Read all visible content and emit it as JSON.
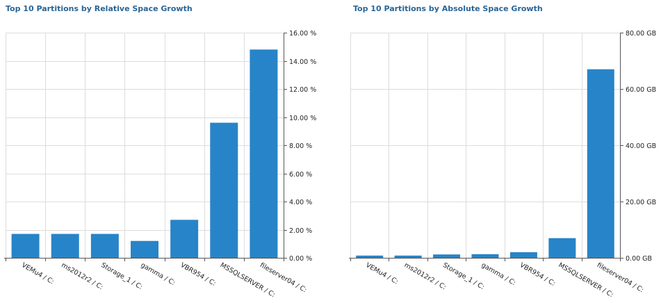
{
  "chart_data": [
    {
      "type": "bar",
      "title": "Top 10 Partitions by Relative Space Growth",
      "categories": [
        "VEMu4 / C:",
        "ms2012r2 / C:",
        "Storage_1 / C:",
        "gamma / C:",
        "VBR954 / C:",
        "MSSQLSERVER / C:",
        "fileserver04 / C:"
      ],
      "values": [
        1.7,
        1.7,
        1.7,
        1.2,
        2.7,
        9.6,
        14.8
      ],
      "ylim": [
        0,
        16
      ],
      "yticks": [
        0,
        2,
        4,
        6,
        8,
        10,
        12,
        14,
        16
      ],
      "ytick_labels": [
        "0.00 %",
        "2.00 %",
        "4.00 %",
        "6.00 %",
        "8.00 %",
        "10.00 %",
        "12.00 %",
        "14.00 %",
        "16.00 %"
      ],
      "grid": true,
      "bar_color": "#2784c8"
    },
    {
      "type": "bar",
      "title": "Top 10 Partitions by Absolute Space Growth",
      "categories": [
        "VEMu4 / C:",
        "ms2012r2 / C:",
        "Storage_1 / C:",
        "gamma / C:",
        "VBR954 / C:",
        "MSSQLSERVER / C:",
        "fileserver04 / C:"
      ],
      "values": [
        0.8,
        0.8,
        1.2,
        1.3,
        2.0,
        7.0,
        67.0
      ],
      "ylim": [
        0,
        80
      ],
      "yticks": [
        0,
        20,
        40,
        60,
        80
      ],
      "ytick_labels": [
        "0.00 GB",
        "20.00 GB",
        "40.00 GB",
        "60.00 GB",
        "80.00 GB"
      ],
      "grid": true,
      "bar_color": "#2784c8"
    }
  ]
}
